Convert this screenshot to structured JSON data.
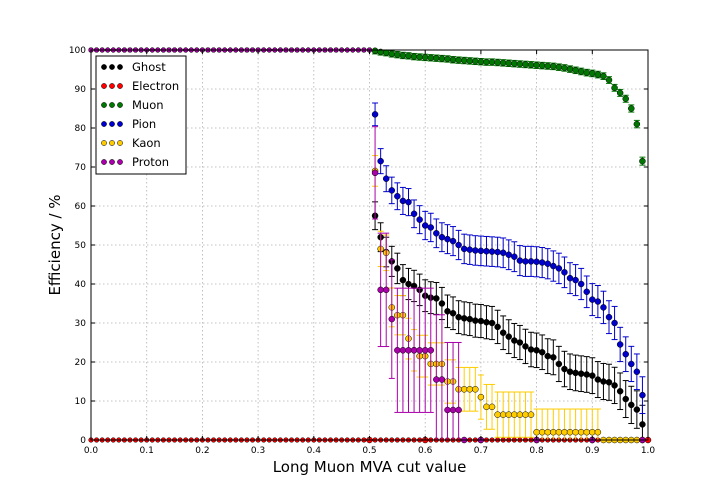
{
  "chart_data": {
    "type": "scatter",
    "xlabel": "Long Muon MVA cut value",
    "ylabel": "Efficiency / %",
    "xlim": [
      0.0,
      1.0
    ],
    "ylim": [
      0,
      100
    ],
    "xticks": [
      "0.0",
      "0.1",
      "0.2",
      "0.3",
      "0.4",
      "0.5",
      "0.6",
      "0.7",
      "0.8",
      "0.9",
      "1.0"
    ],
    "yticks": [
      "0",
      "10",
      "20",
      "30",
      "40",
      "50",
      "60",
      "70",
      "80",
      "90",
      "100"
    ],
    "grid": true,
    "legend_position": "top-left",
    "series": [
      {
        "name": "Ghost",
        "color": "#000000",
        "points": [
          [
            0.5,
            100
          ],
          [
            0.51,
            57.5
          ],
          [
            0.52,
            52
          ],
          [
            0.53,
            48.2
          ],
          [
            0.54,
            45.8
          ],
          [
            0.55,
            44
          ],
          [
            0.56,
            41
          ],
          [
            0.57,
            40
          ],
          [
            0.58,
            39.5
          ],
          [
            0.59,
            38.5
          ],
          [
            0.6,
            37
          ],
          [
            0.61,
            36.5
          ],
          [
            0.62,
            36.3
          ],
          [
            0.63,
            35
          ],
          [
            0.64,
            33
          ],
          [
            0.65,
            32.5
          ],
          [
            0.66,
            31.5
          ],
          [
            0.67,
            31.2
          ],
          [
            0.68,
            31
          ],
          [
            0.69,
            30.6
          ],
          [
            0.7,
            30.5
          ],
          [
            0.71,
            30.2
          ],
          [
            0.72,
            30
          ],
          [
            0.73,
            29
          ],
          [
            0.74,
            27.5
          ],
          [
            0.75,
            26.5
          ],
          [
            0.76,
            25.5
          ],
          [
            0.77,
            25
          ],
          [
            0.78,
            24
          ],
          [
            0.79,
            23.2
          ],
          [
            0.8,
            23
          ],
          [
            0.81,
            22.5
          ],
          [
            0.82,
            21.5
          ],
          [
            0.83,
            21.2
          ],
          [
            0.84,
            19.5
          ],
          [
            0.85,
            18.2
          ],
          [
            0.86,
            17.5
          ],
          [
            0.87,
            17.2
          ],
          [
            0.88,
            17
          ],
          [
            0.89,
            16.8
          ],
          [
            0.9,
            16.5
          ],
          [
            0.91,
            15.5
          ],
          [
            0.92,
            15
          ],
          [
            0.93,
            14.8
          ],
          [
            0.94,
            14
          ],
          [
            0.95,
            12.5
          ],
          [
            0.96,
            10.5
          ],
          [
            0.97,
            9
          ],
          [
            0.98,
            7.8
          ],
          [
            0.99,
            4
          ]
        ],
        "errors_before_0p5": 0,
        "error_scale": 2.5
      },
      {
        "name": "Electron",
        "color": "#ff0000",
        "points": [
          [
            0.5,
            0
          ],
          [
            0.6,
            0
          ],
          [
            0.7,
            0
          ],
          [
            0.8,
            0
          ],
          [
            0.9,
            0
          ],
          [
            1.0,
            0
          ]
        ],
        "error_scale": 0.2
      },
      {
        "name": "Muon",
        "color": "#007700",
        "points": [
          [
            0.5,
            100
          ],
          [
            0.51,
            99.8
          ],
          [
            0.52,
            99.5
          ],
          [
            0.53,
            99.3
          ],
          [
            0.54,
            99
          ],
          [
            0.55,
            98.8
          ],
          [
            0.56,
            98.6
          ],
          [
            0.57,
            98.5
          ],
          [
            0.58,
            98.3
          ],
          [
            0.59,
            98.2
          ],
          [
            0.6,
            98.1
          ],
          [
            0.61,
            98
          ],
          [
            0.62,
            97.9
          ],
          [
            0.63,
            97.8
          ],
          [
            0.64,
            97.7
          ],
          [
            0.65,
            97.5
          ],
          [
            0.66,
            97.4
          ],
          [
            0.67,
            97.3
          ],
          [
            0.68,
            97.2
          ],
          [
            0.69,
            97.1
          ],
          [
            0.7,
            97
          ],
          [
            0.71,
            96.9
          ],
          [
            0.72,
            96.9
          ],
          [
            0.73,
            96.8
          ],
          [
            0.74,
            96.7
          ],
          [
            0.75,
            96.6
          ],
          [
            0.76,
            96.5
          ],
          [
            0.77,
            96.4
          ],
          [
            0.78,
            96.3
          ],
          [
            0.79,
            96.2
          ],
          [
            0.8,
            96.1
          ],
          [
            0.81,
            96
          ],
          [
            0.82,
            95.9
          ],
          [
            0.83,
            95.8
          ],
          [
            0.84,
            95.6
          ],
          [
            0.85,
            95.4
          ],
          [
            0.86,
            95.1
          ],
          [
            0.87,
            94.8
          ],
          [
            0.88,
            94.5
          ],
          [
            0.89,
            94.2
          ],
          [
            0.9,
            94
          ],
          [
            0.91,
            93.7
          ],
          [
            0.92,
            93.3
          ],
          [
            0.93,
            92.3
          ],
          [
            0.94,
            90.3
          ],
          [
            0.95,
            89
          ],
          [
            0.96,
            87.5
          ],
          [
            0.97,
            85
          ],
          [
            0.98,
            81
          ],
          [
            0.99,
            71.5
          ]
        ],
        "error_scale": 0.8
      },
      {
        "name": "Pion",
        "color": "#0000cc",
        "points": [
          [
            0.5,
            100
          ],
          [
            0.51,
            83.5
          ],
          [
            0.52,
            71.5
          ],
          [
            0.53,
            67
          ],
          [
            0.54,
            64
          ],
          [
            0.55,
            62.5
          ],
          [
            0.56,
            61.3
          ],
          [
            0.57,
            61
          ],
          [
            0.58,
            58
          ],
          [
            0.59,
            56.5
          ],
          [
            0.6,
            55
          ],
          [
            0.61,
            54.5
          ],
          [
            0.62,
            53
          ],
          [
            0.63,
            52
          ],
          [
            0.64,
            51.5
          ],
          [
            0.65,
            51
          ],
          [
            0.66,
            50
          ],
          [
            0.67,
            49
          ],
          [
            0.68,
            48.8
          ],
          [
            0.69,
            48.6
          ],
          [
            0.7,
            48.5
          ],
          [
            0.71,
            48.4
          ],
          [
            0.72,
            48.3
          ],
          [
            0.73,
            48.2
          ],
          [
            0.74,
            48
          ],
          [
            0.75,
            47.5
          ],
          [
            0.76,
            47
          ],
          [
            0.77,
            46
          ],
          [
            0.78,
            45.8
          ],
          [
            0.79,
            45.8
          ],
          [
            0.8,
            45.7
          ],
          [
            0.81,
            45.5
          ],
          [
            0.82,
            45.2
          ],
          [
            0.83,
            44.6
          ],
          [
            0.84,
            44
          ],
          [
            0.85,
            43
          ],
          [
            0.86,
            41.5
          ],
          [
            0.87,
            41
          ],
          [
            0.88,
            40
          ],
          [
            0.89,
            38
          ],
          [
            0.9,
            36
          ],
          [
            0.91,
            35.5
          ],
          [
            0.92,
            34
          ],
          [
            0.93,
            31.5
          ],
          [
            0.94,
            30
          ],
          [
            0.95,
            24.5
          ],
          [
            0.96,
            22
          ],
          [
            0.97,
            19.5
          ],
          [
            0.98,
            17.5
          ],
          [
            0.99,
            11.5
          ]
        ],
        "error_scale": 2.5
      },
      {
        "name": "Kaon",
        "color": "#ffcc00",
        "points": [
          [
            0.5,
            100
          ],
          [
            0.51,
            69
          ],
          [
            0.52,
            49
          ],
          [
            0.53,
            48
          ],
          [
            0.54,
            34
          ],
          [
            0.55,
            32
          ],
          [
            0.56,
            32
          ],
          [
            0.57,
            26
          ],
          [
            0.58,
            23
          ],
          [
            0.59,
            21.5
          ],
          [
            0.6,
            21.5
          ],
          [
            0.61,
            19.5
          ],
          [
            0.62,
            19.5
          ],
          [
            0.63,
            19.5
          ],
          [
            0.64,
            15
          ],
          [
            0.65,
            15
          ],
          [
            0.66,
            13
          ],
          [
            0.67,
            13
          ],
          [
            0.68,
            13
          ],
          [
            0.69,
            13
          ],
          [
            0.7,
            11
          ],
          [
            0.71,
            8.5
          ],
          [
            0.72,
            8.5
          ],
          [
            0.73,
            6.5
          ],
          [
            0.74,
            6.5
          ],
          [
            0.75,
            6.5
          ],
          [
            0.76,
            6.5
          ],
          [
            0.77,
            6.5
          ],
          [
            0.78,
            6.5
          ],
          [
            0.79,
            6.5
          ],
          [
            0.8,
            2
          ],
          [
            0.81,
            2
          ],
          [
            0.82,
            2
          ],
          [
            0.83,
            2
          ],
          [
            0.84,
            2
          ],
          [
            0.85,
            2
          ],
          [
            0.86,
            2
          ],
          [
            0.87,
            2
          ],
          [
            0.88,
            2
          ],
          [
            0.89,
            2
          ],
          [
            0.9,
            2
          ],
          [
            0.91,
            2
          ],
          [
            0.92,
            0
          ],
          [
            0.93,
            0
          ],
          [
            0.94,
            0
          ],
          [
            0.95,
            0
          ],
          [
            0.96,
            0
          ],
          [
            0.97,
            0
          ],
          [
            0.98,
            0
          ],
          [
            0.99,
            0
          ]
        ],
        "error_scale": 3
      },
      {
        "name": "Proton",
        "color": "#aa00aa",
        "points": [
          [
            0.5,
            100
          ],
          [
            0.51,
            68.5
          ],
          [
            0.52,
            38.5
          ],
          [
            0.53,
            38.5
          ],
          [
            0.54,
            31
          ],
          [
            0.55,
            23
          ],
          [
            0.56,
            23
          ],
          [
            0.57,
            23
          ],
          [
            0.58,
            23
          ],
          [
            0.59,
            23
          ],
          [
            0.6,
            23
          ],
          [
            0.61,
            23
          ],
          [
            0.62,
            15.5
          ],
          [
            0.63,
            15.5
          ],
          [
            0.64,
            7.7
          ],
          [
            0.65,
            7.7
          ],
          [
            0.66,
            7.7
          ],
          [
            0.67,
            0
          ],
          [
            0.7,
            0
          ],
          [
            0.8,
            0
          ],
          [
            0.9,
            0
          ],
          [
            0.99,
            0
          ]
        ],
        "error_scale": 9
      }
    ]
  }
}
